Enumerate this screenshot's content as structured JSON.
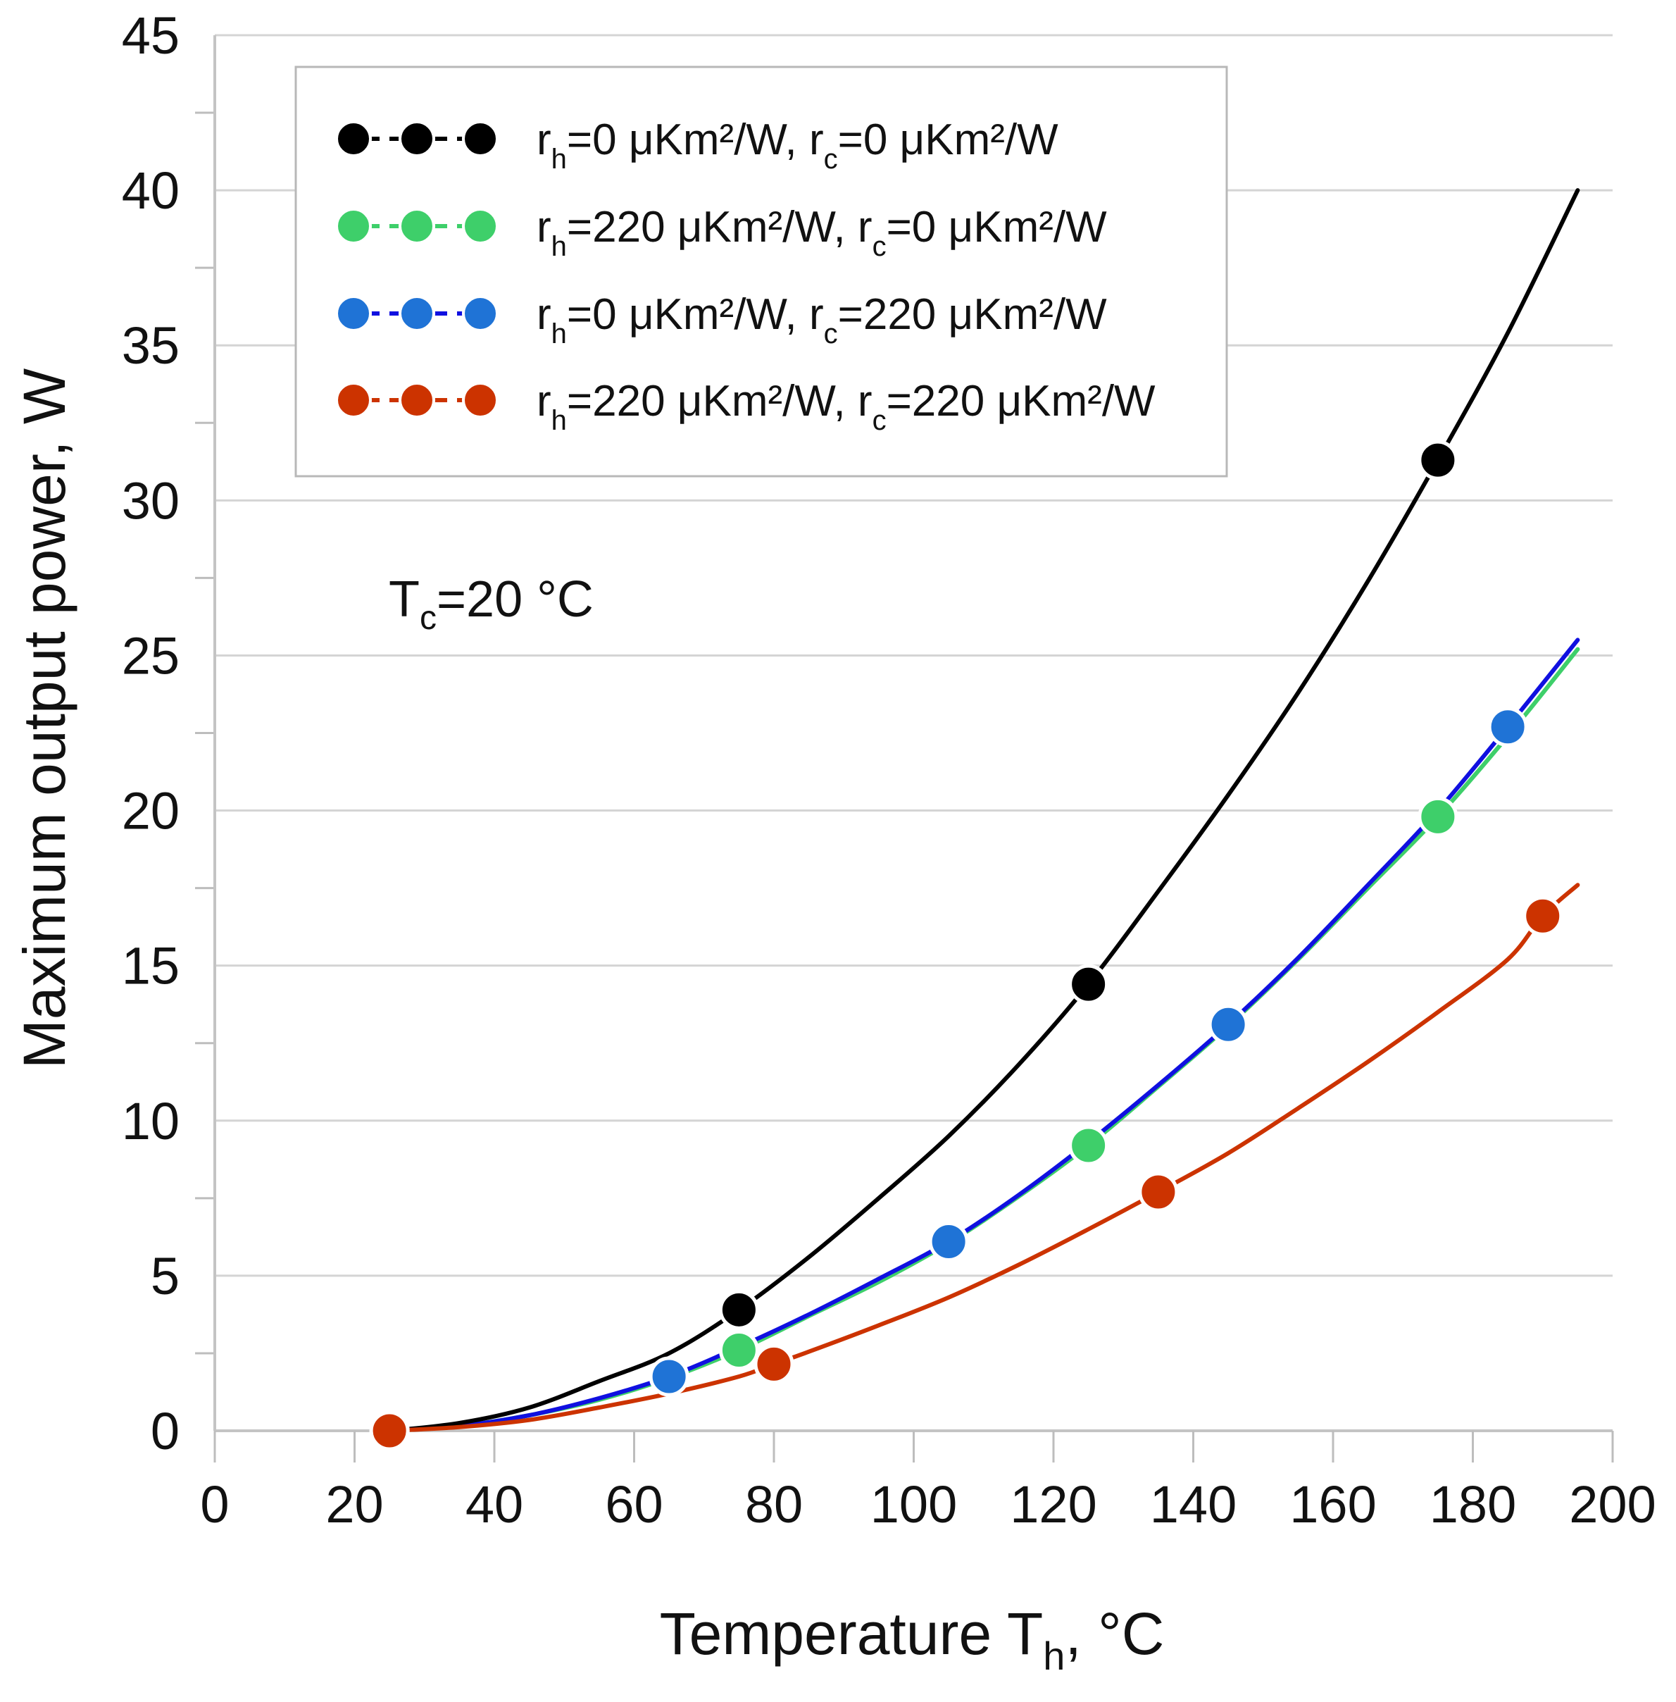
{
  "chart_data": {
    "type": "line",
    "xlabel": {
      "main": "Temperature T",
      "sub": "h",
      "tail": ", °C"
    },
    "ylabel": "Maximum output power, W",
    "xlim": [
      0,
      200
    ],
    "ylim": [
      0,
      45
    ],
    "x_ticks": [
      "0",
      "20",
      "40",
      "60",
      "80",
      "100",
      "120",
      "140",
      "160",
      "180",
      "200"
    ],
    "y_ticks": [
      "0",
      "5",
      "10",
      "15",
      "20",
      "25",
      "30",
      "35",
      "40",
      "45"
    ],
    "grid": "horizontal",
    "legend_position": "top-left",
    "annotation": {
      "main": "T",
      "sub": "c",
      "tail": "=20 °C"
    },
    "series": [
      {
        "name": "rh=0 μKm²/W, rc=0 μKm²/W",
        "label_parts": {
          "a": "r",
          "a_sub": "h",
          "b": "=0 μKm²/W, r",
          "b_sub": "c",
          "c": "=0 μKm²/W"
        },
        "color": "#000000",
        "line_color": "#000000",
        "markers": [
          [
            25,
            0
          ],
          [
            75,
            3.9
          ],
          [
            125,
            14.4
          ],
          [
            175,
            31.3
          ]
        ],
        "curve": [
          [
            25,
            0
          ],
          [
            35,
            0.25
          ],
          [
            45,
            0.75
          ],
          [
            55,
            1.6
          ],
          [
            65,
            2.5
          ],
          [
            75,
            3.9
          ],
          [
            85,
            5.6
          ],
          [
            95,
            7.5
          ],
          [
            105,
            9.5
          ],
          [
            115,
            11.8
          ],
          [
            125,
            14.4
          ],
          [
            135,
            17.4
          ],
          [
            145,
            20.5
          ],
          [
            155,
            23.8
          ],
          [
            165,
            27.4
          ],
          [
            175,
            31.3
          ],
          [
            185,
            35.4
          ],
          [
            195,
            40.0
          ]
        ]
      },
      {
        "name": "rh=220 μKm²/W, rc=0 μKm²/W",
        "label_parts": {
          "a": "r",
          "a_sub": "h",
          "b": "=220 μKm²/W, r",
          "b_sub": "c",
          "c": "=0 μKm²/W"
        },
        "color": "#3ecf6a",
        "line_color": "#3ecf6a",
        "markers": [
          [
            75,
            2.6
          ],
          [
            125,
            9.2
          ],
          [
            175,
            19.8
          ]
        ],
        "curve": [
          [
            25,
            0
          ],
          [
            35,
            0.15
          ],
          [
            45,
            0.5
          ],
          [
            55,
            1.0
          ],
          [
            65,
            1.7
          ],
          [
            75,
            2.6
          ],
          [
            85,
            3.7
          ],
          [
            95,
            4.8
          ],
          [
            105,
            6.05
          ],
          [
            115,
            7.55
          ],
          [
            125,
            9.2
          ],
          [
            135,
            11.1
          ],
          [
            145,
            13.05
          ],
          [
            155,
            15.2
          ],
          [
            165,
            17.5
          ],
          [
            175,
            19.8
          ],
          [
            185,
            22.4
          ],
          [
            195,
            25.2
          ]
        ]
      },
      {
        "name": "rh=0 μKm²/W, rc=220 μKm²/W",
        "label_parts": {
          "a": "r",
          "a_sub": "h",
          "b": "=0 μKm²/W, r",
          "b_sub": "c",
          "c": "=220 μKm²/W"
        },
        "color": "#1f73d6",
        "line_color": "#1010e0",
        "markers": [
          [
            65,
            1.75
          ],
          [
            105,
            6.1
          ],
          [
            145,
            13.1
          ],
          [
            185,
            22.7
          ]
        ],
        "curve": [
          [
            25,
            0
          ],
          [
            35,
            0.15
          ],
          [
            45,
            0.5
          ],
          [
            55,
            1.05
          ],
          [
            65,
            1.75
          ],
          [
            75,
            2.7
          ],
          [
            85,
            3.75
          ],
          [
            95,
            4.9
          ],
          [
            105,
            6.1
          ],
          [
            115,
            7.6
          ],
          [
            125,
            9.3
          ],
          [
            135,
            11.15
          ],
          [
            145,
            13.1
          ],
          [
            155,
            15.25
          ],
          [
            165,
            17.6
          ],
          [
            175,
            20.0
          ],
          [
            185,
            22.7
          ],
          [
            195,
            25.5
          ]
        ]
      },
      {
        "name": "rh=220 μKm²/W, rc=220 μKm²/W",
        "label_parts": {
          "a": "r",
          "a_sub": "h",
          "b": "=220 μKm²/W, r",
          "b_sub": "c",
          "c": "=220 μKm²/W"
        },
        "color": "#cc3300",
        "line_color": "#cc3300",
        "markers": [
          [
            25,
            0
          ],
          [
            80,
            2.15
          ],
          [
            135,
            7.7
          ],
          [
            190,
            16.6
          ]
        ],
        "curve": [
          [
            25,
            0
          ],
          [
            35,
            0.12
          ],
          [
            45,
            0.35
          ],
          [
            55,
            0.75
          ],
          [
            65,
            1.2
          ],
          [
            75,
            1.75
          ],
          [
            80,
            2.15
          ],
          [
            85,
            2.55
          ],
          [
            95,
            3.4
          ],
          [
            105,
            4.3
          ],
          [
            115,
            5.35
          ],
          [
            125,
            6.5
          ],
          [
            135,
            7.7
          ],
          [
            145,
            8.95
          ],
          [
            155,
            10.4
          ],
          [
            165,
            11.9
          ],
          [
            175,
            13.5
          ],
          [
            185,
            15.2
          ],
          [
            190,
            16.6
          ],
          [
            195,
            17.6
          ]
        ]
      }
    ]
  }
}
